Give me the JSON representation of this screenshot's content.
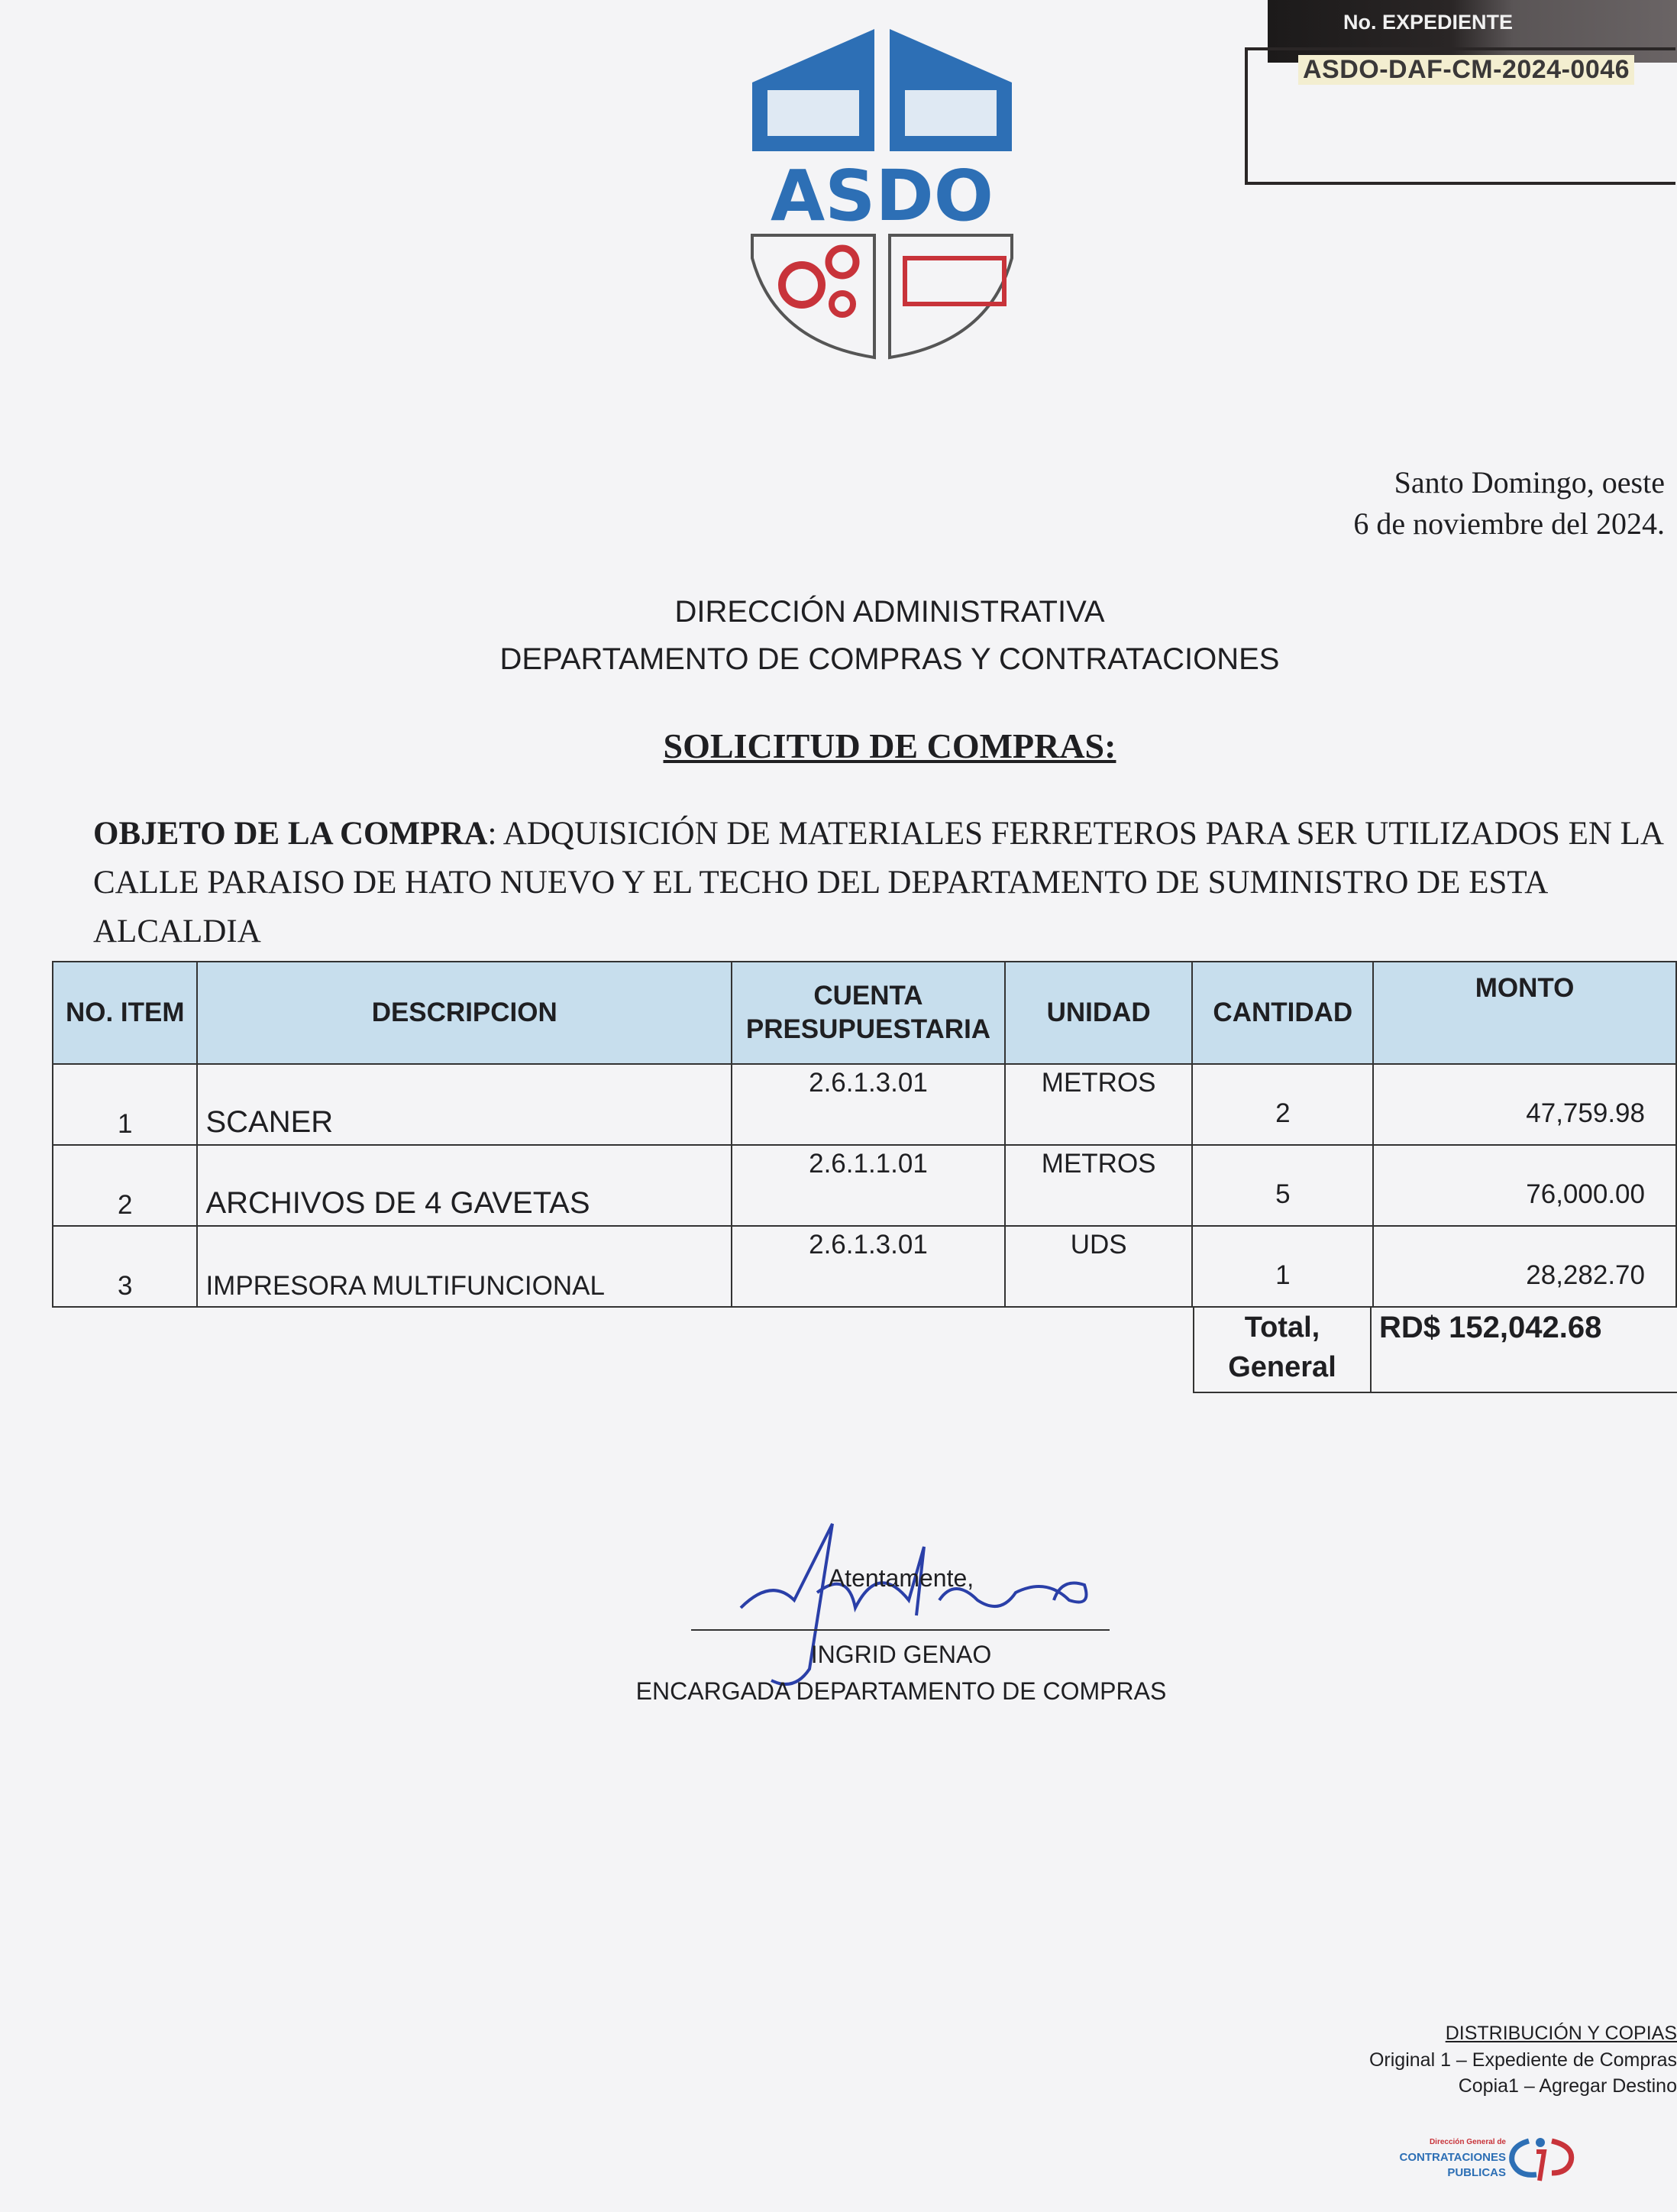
{
  "expediente": {
    "label": "No. EXPEDIENTE",
    "number": "ASDO-DAF-CM-2024-0046"
  },
  "logo": {
    "text": "ASDO",
    "colors": {
      "blue": "#2d6fb5",
      "red": "#c8333a"
    }
  },
  "place_date": {
    "line1": "Santo Domingo, oeste",
    "line2": "6  de noviembre del 2024."
  },
  "header": {
    "line1": "DIRECCIÓN ADMINISTRATIVA",
    "line2": "DEPARTAMENTO DE COMPRAS Y CONTRATACIONES"
  },
  "title": "SOLICITUD DE COMPRAS:",
  "objeto": {
    "label": "OBJETO DE LA COMPRA",
    "text": ": ADQUISICIÓN DE MATERIALES FERRETEROS PARA SER UTILIZADOS EN LA CALLE PARAISO DE HATO NUEVO Y EL TECHO DEL DEPARTAMENTO DE SUMINISTRO DE ESTA ALCALDIA"
  },
  "table": {
    "header_color": "#c7deed",
    "columns": [
      "NO. ITEM",
      "DESCRIPCION",
      "CUENTA PRESUPUESTARIA",
      "UNIDAD",
      "CANTIDAD",
      "MONTO"
    ],
    "rows": [
      {
        "item": "1",
        "descripcion": "SCANER",
        "cuenta": "2.6.1.3.01",
        "unidad": "METROS",
        "cantidad": "2",
        "monto": "47,759.98"
      },
      {
        "item": "2",
        "descripcion": "ARCHIVOS DE 4 GAVETAS",
        "cuenta": "2.6.1.1.01",
        "unidad": "METROS",
        "cantidad": "5",
        "monto": "76,000.00"
      },
      {
        "item": "3",
        "descripcion": "IMPRESORA MULTIFUNCIONAL",
        "cuenta": "2.6.1.3.01",
        "unidad": "UDS",
        "cantidad": "1",
        "monto": "28,282.70"
      }
    ],
    "total_label": "Total, General",
    "total_value": "RD$ 152,042.68"
  },
  "signature": {
    "closing": "Atentamente,",
    "name": "INGRID GENAO",
    "role": "ENCARGADA DEPARTAMENTO DE COMPRAS"
  },
  "distribution": {
    "title": "DISTRIBUCIÓN Y COPIAS",
    "line1": "Original 1 – Expediente de Compras",
    "line2": "Copia1 – Agregar Destino"
  },
  "footer_logo": {
    "top": "Dirección General de",
    "main1": "CONTRATACIONES",
    "main2": "PUBLICAS"
  }
}
